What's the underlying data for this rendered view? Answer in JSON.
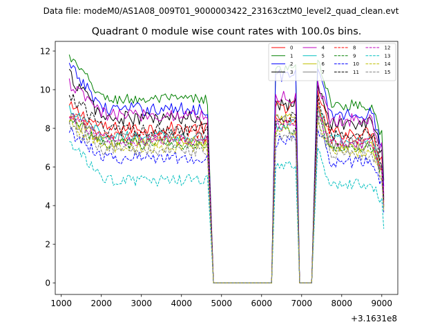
{
  "chart_data": {
    "type": "line",
    "suptitle": "Data file: modeM0/AS1A08_009T01_9000003422_23163cztM0_level2_quad_clean.evt",
    "title": "Quadrant 0 module wise count rates with 100.0s bins.",
    "xlabel": "",
    "ylabel": "",
    "x_offset_label": "+3.1631e8",
    "xlim": [
      850,
      9400
    ],
    "ylim": [
      -0.6,
      12.5
    ],
    "xticks": [
      1000,
      2000,
      3000,
      4000,
      5000,
      6000,
      7000,
      8000,
      9000
    ],
    "yticks": [
      0,
      2,
      4,
      6,
      8,
      10,
      12
    ],
    "legend_position": "top-right",
    "legend_columns": 4,
    "gaps": [
      {
        "fall_from": 4650,
        "zero_start": 4800,
        "zero_end": 6250,
        "rise_to": 6350
      },
      {
        "fall_from": 6850,
        "zero_start": 6950,
        "zero_end": 7250,
        "rise_to": 7400
      }
    ],
    "segments": [
      {
        "start": 1200,
        "end": 4650,
        "step": 50
      },
      {
        "start": 6350,
        "end": 6850,
        "step": 50
      },
      {
        "start": 7400,
        "end": 9000,
        "step": 50
      }
    ],
    "series": [
      {
        "name": "0",
        "color": "#ff0000",
        "dash": "solid",
        "level": 8.0,
        "start": 9.1,
        "peak1": 9.5,
        "peak2": 10.0,
        "end": 4.2,
        "noise": 0.35
      },
      {
        "name": "1",
        "color": "#008000",
        "dash": "solid",
        "level": 9.5,
        "start": 11.7,
        "peak1": 11.5,
        "peak2": 11.8,
        "end": 5.3,
        "noise": 0.3
      },
      {
        "name": "2",
        "color": "#0000ff",
        "dash": "solid",
        "level": 9.0,
        "start": 11.2,
        "peak1": 11.2,
        "peak2": 11.0,
        "end": 5.0,
        "noise": 0.35
      },
      {
        "name": "3",
        "color": "#000000",
        "dash": "solid",
        "level": 8.5,
        "start": 10.8,
        "peak1": 9.7,
        "peak2": 10.5,
        "end": 4.4,
        "noise": 0.4
      },
      {
        "name": "4",
        "color": "#bf00bf",
        "dash": "solid",
        "level": 8.7,
        "start": 10.3,
        "peak1": 10.0,
        "peak2": 10.3,
        "end": 4.6,
        "noise": 0.35
      },
      {
        "name": "5",
        "color": "#00bfbf",
        "dash": "solid",
        "level": 7.6,
        "start": 8.9,
        "peak1": 8.5,
        "peak2": 9.0,
        "end": 4.0,
        "noise": 0.3
      },
      {
        "name": "6",
        "color": "#bfbf00",
        "dash": "solid",
        "level": 7.3,
        "start": 8.6,
        "peak1": 8.8,
        "peak2": 9.0,
        "end": 3.9,
        "noise": 0.3
      },
      {
        "name": "7",
        "color": "#808080",
        "dash": "solid",
        "level": 7.4,
        "start": 8.5,
        "peak1": 8.8,
        "peak2": 9.2,
        "end": 4.0,
        "noise": 0.35
      },
      {
        "name": "8",
        "color": "#ff0000",
        "dash": "dashed",
        "level": 7.6,
        "start": 8.8,
        "peak1": 8.7,
        "peak2": 9.2,
        "end": 4.1,
        "noise": 0.3
      },
      {
        "name": "9",
        "color": "#008000",
        "dash": "dashed",
        "level": 7.2,
        "start": 8.5,
        "peak1": 8.3,
        "peak2": 8.6,
        "end": 3.9,
        "noise": 0.3
      },
      {
        "name": "10",
        "color": "#0000ff",
        "dash": "dashed",
        "level": 6.5,
        "start": 7.9,
        "peak1": 7.6,
        "peak2": 8.2,
        "end": 3.6,
        "noise": 0.35
      },
      {
        "name": "11",
        "color": "#000000",
        "dash": "dashed",
        "level": 7.9,
        "start": 9.8,
        "peak1": 9.0,
        "peak2": 9.6,
        "end": 4.3,
        "noise": 0.35
      },
      {
        "name": "12",
        "color": "#bf00bf",
        "dash": "dashed",
        "level": 7.4,
        "start": 8.6,
        "peak1": 8.5,
        "peak2": 8.8,
        "end": 4.0,
        "noise": 0.3
      },
      {
        "name": "13",
        "color": "#00bfbf",
        "dash": "dashed",
        "level": 5.3,
        "start": 7.3,
        "peak1": 6.3,
        "peak2": 6.8,
        "end": 2.8,
        "noise": 0.3
      },
      {
        "name": "14",
        "color": "#bfbf00",
        "dash": "dashed",
        "level": 7.0,
        "start": 8.3,
        "peak1": 8.2,
        "peak2": 8.5,
        "end": 3.8,
        "noise": 0.3
      },
      {
        "name": "15",
        "color": "#808080",
        "dash": "dashed",
        "level": 6.9,
        "start": 8.2,
        "peak1": 8.0,
        "peak2": 8.4,
        "end": 3.7,
        "noise": 0.35
      }
    ]
  }
}
